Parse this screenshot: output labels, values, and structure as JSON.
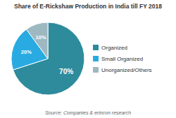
{
  "chart_data": {
    "type": "pie",
    "title": "Share of E-Rickshaw Production in India till FY 2018",
    "categories": [
      "Organized",
      "Small Organized",
      "Unorganized/Others"
    ],
    "values": [
      70,
      20,
      10
    ],
    "value_labels": [
      "70%",
      "20%",
      "10%"
    ],
    "colors": [
      "#2e8b9c",
      "#29abe2",
      "#9db8c0"
    ],
    "data_labels": true,
    "legend": "right",
    "annotations": [
      "Source: Companies & erincon research"
    ]
  }
}
